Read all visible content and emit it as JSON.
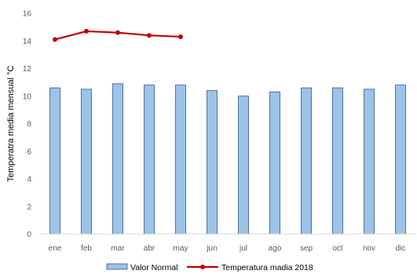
{
  "chart_data": {
    "type": "bar",
    "categories": [
      "ene",
      "feb",
      "mar",
      "abr",
      "may",
      "jun",
      "jul",
      "ago",
      "sep",
      "oct",
      "nov",
      "dic"
    ],
    "series": [
      {
        "name": "Valor Normal",
        "type": "bar",
        "values": [
          10.6,
          10.5,
          10.9,
          10.8,
          10.8,
          10.4,
          10.0,
          10.3,
          10.6,
          10.6,
          10.5,
          10.8
        ],
        "color": "#9DC3E6",
        "stroke": "#2F5597"
      },
      {
        "name": "Temperatura madia 2018",
        "type": "line",
        "values": [
          14.1,
          14.7,
          14.6,
          14.4,
          14.3,
          null,
          null,
          null,
          null,
          null,
          null,
          null
        ],
        "color": "#C00000"
      }
    ],
    "ylabel": "Temperatra media mensual °C",
    "ylim": [
      0,
      16
    ],
    "yticks": [
      0,
      2,
      4,
      6,
      8,
      10,
      12,
      14,
      16
    ],
    "grid": false,
    "legend": "bottom-center"
  }
}
